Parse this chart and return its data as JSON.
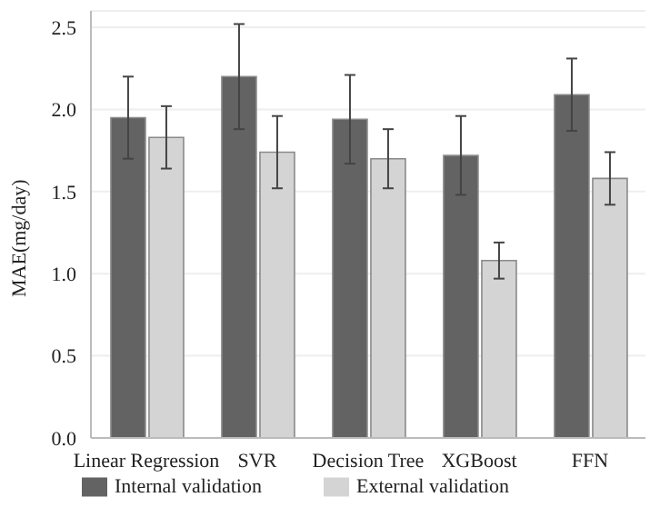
{
  "chart_data": {
    "type": "bar",
    "ylabel": "MAE(mg/day)",
    "categories": [
      "Linear Regression",
      "SVR",
      "Decision Tree",
      "XGBoost",
      "FFN"
    ],
    "series": [
      {
        "name": "Internal validation",
        "color": "#636363",
        "values": [
          1.95,
          2.2,
          1.94,
          1.72,
          2.09
        ],
        "errors": [
          0.25,
          0.32,
          0.27,
          0.24,
          0.22
        ]
      },
      {
        "name": "External validation",
        "color": "#d4d4d4",
        "values": [
          1.83,
          1.74,
          1.7,
          1.08,
          1.58
        ],
        "errors": [
          0.19,
          0.22,
          0.18,
          0.11,
          0.16
        ]
      }
    ],
    "ylim": [
      0,
      2.6
    ],
    "yticks": [
      {
        "value": 0,
        "label": "0.0"
      },
      0.5,
      {
        "value": 1,
        "label": "1.0"
      },
      1.5,
      {
        "value": 2,
        "label": "2.0"
      },
      2.5
    ],
    "grid": "y",
    "legend": "bottom"
  }
}
